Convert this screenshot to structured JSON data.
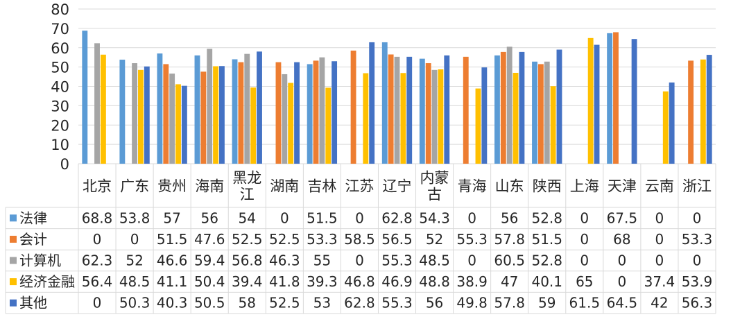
{
  "chart_data": {
    "type": "bar",
    "title": "",
    "xlabel": "",
    "ylabel": "",
    "ylim": [
      0,
      80
    ],
    "yticks": [
      0,
      10,
      20,
      30,
      40,
      50,
      60,
      70,
      80
    ],
    "grid": true,
    "legend": "data-table-left",
    "categories": [
      "北京",
      "广东",
      "贵州",
      "海南",
      "黑龙江",
      "湖南",
      "吉林",
      "江苏",
      "辽宁",
      "内蒙古",
      "青海",
      "山东",
      "陕西",
      "上海",
      "天津",
      "云南",
      "浙江"
    ],
    "category_display": [
      [
        "北京"
      ],
      [
        "广东"
      ],
      [
        "贵州"
      ],
      [
        "海南"
      ],
      [
        "黑龙",
        "江"
      ],
      [
        "湖南"
      ],
      [
        "吉林"
      ],
      [
        "江苏"
      ],
      [
        "辽宁"
      ],
      [
        "内蒙",
        "古"
      ],
      [
        "青海"
      ],
      [
        "山东"
      ],
      [
        "陕西"
      ],
      [
        "上海"
      ],
      [
        "天津"
      ],
      [
        "云南"
      ],
      [
        "浙江"
      ]
    ],
    "series": [
      {
        "name": "法律",
        "color": "#5B9BD5",
        "values": [
          68.8,
          53.8,
          57,
          56,
          54,
          0,
          51.5,
          0,
          62.8,
          54.3,
          0,
          56,
          52.8,
          0,
          67.5,
          0,
          0
        ]
      },
      {
        "name": "会计",
        "color": "#ED7D31",
        "values": [
          0,
          0,
          51.5,
          47.6,
          52.5,
          52.5,
          53.3,
          58.5,
          56.5,
          52,
          55.3,
          57.8,
          51.5,
          0,
          68,
          0,
          53.3
        ]
      },
      {
        "name": "计算机",
        "color": "#A5A5A5",
        "values": [
          62.3,
          52,
          46.6,
          59.4,
          56.8,
          46.3,
          55,
          0,
          55.3,
          48.5,
          0,
          60.5,
          52.8,
          0,
          0,
          0,
          0
        ]
      },
      {
        "name": "经济金融",
        "color": "#FFC000",
        "values": [
          56.4,
          48.5,
          41.1,
          50.4,
          39.4,
          41.8,
          39.3,
          46.8,
          46.9,
          48.8,
          38.9,
          47,
          40.1,
          65,
          0,
          37.4,
          53.9
        ]
      },
      {
        "name": "其他",
        "color": "#4472C4",
        "values": [
          0,
          50.3,
          40.3,
          50.5,
          58,
          52.5,
          53,
          62.8,
          55.3,
          56,
          49.8,
          57.8,
          59,
          61.5,
          64.5,
          42,
          56.3
        ]
      }
    ]
  }
}
